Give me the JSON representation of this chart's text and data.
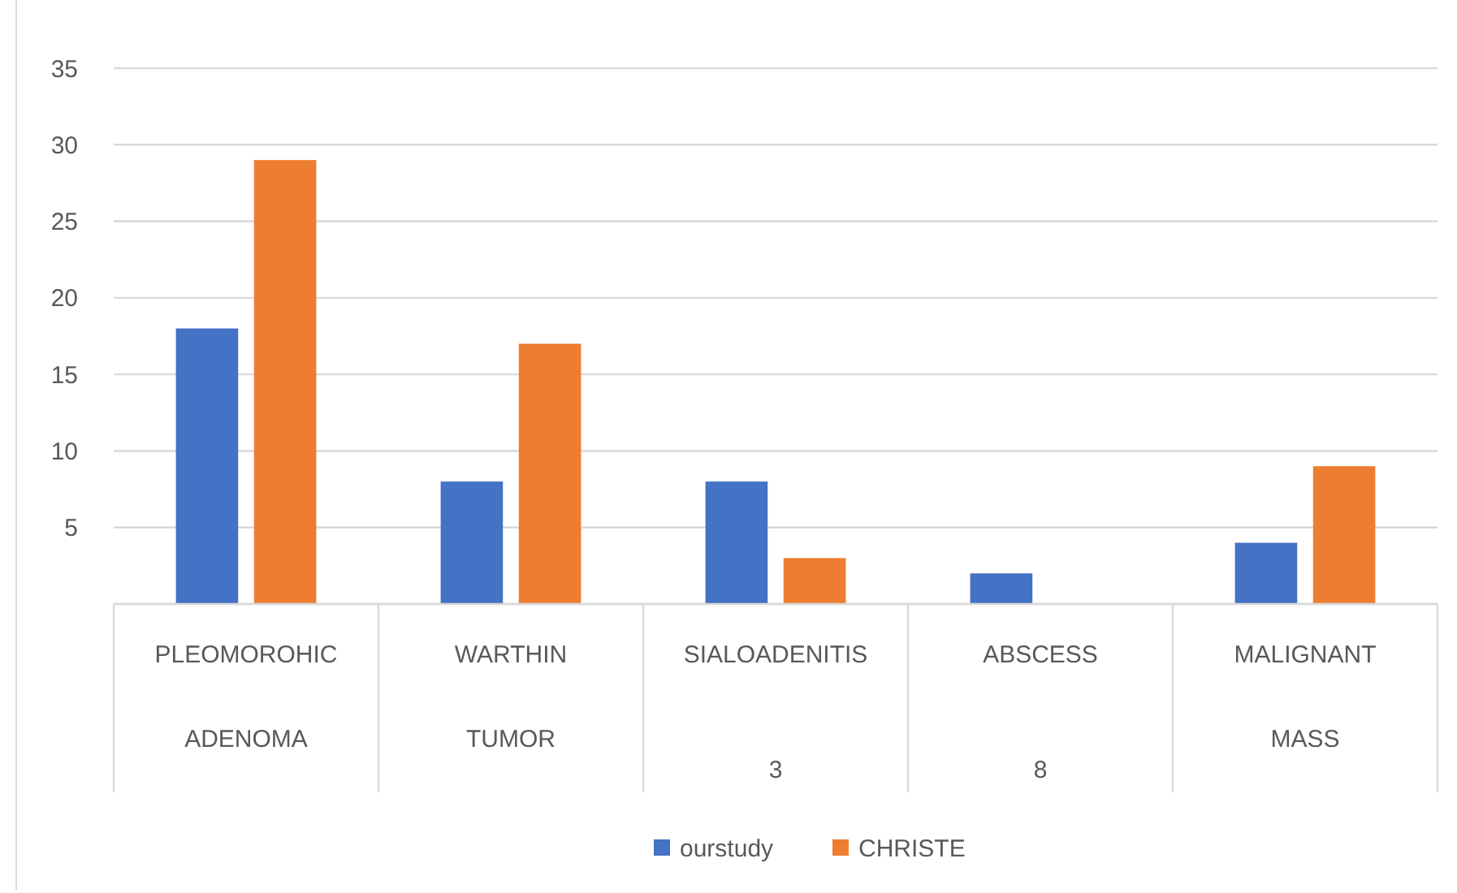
{
  "chart_data": {
    "type": "bar",
    "categories": [
      "PLEOMOROHIC\nADENOMA",
      "WARTHIN\nTUMOR",
      "SIALOADENITIS\n\n3",
      "ABSCESS\n\n8",
      "MALIGNANT\nMASS"
    ],
    "series": [
      {
        "name": "ourstudy",
        "color": "#4472c4",
        "values": [
          18,
          8,
          8,
          2,
          4
        ]
      },
      {
        "name": "CHRISTE",
        "color": "#ed7d31",
        "values": [
          29,
          17,
          3,
          null,
          9
        ]
      }
    ],
    "ylim": [
      0,
      35
    ],
    "yticks": [
      {
        "value": 0,
        "label": null
      },
      5,
      10,
      15,
      20,
      25,
      30,
      35
    ],
    "grid": "y",
    "legend": "bottom"
  }
}
